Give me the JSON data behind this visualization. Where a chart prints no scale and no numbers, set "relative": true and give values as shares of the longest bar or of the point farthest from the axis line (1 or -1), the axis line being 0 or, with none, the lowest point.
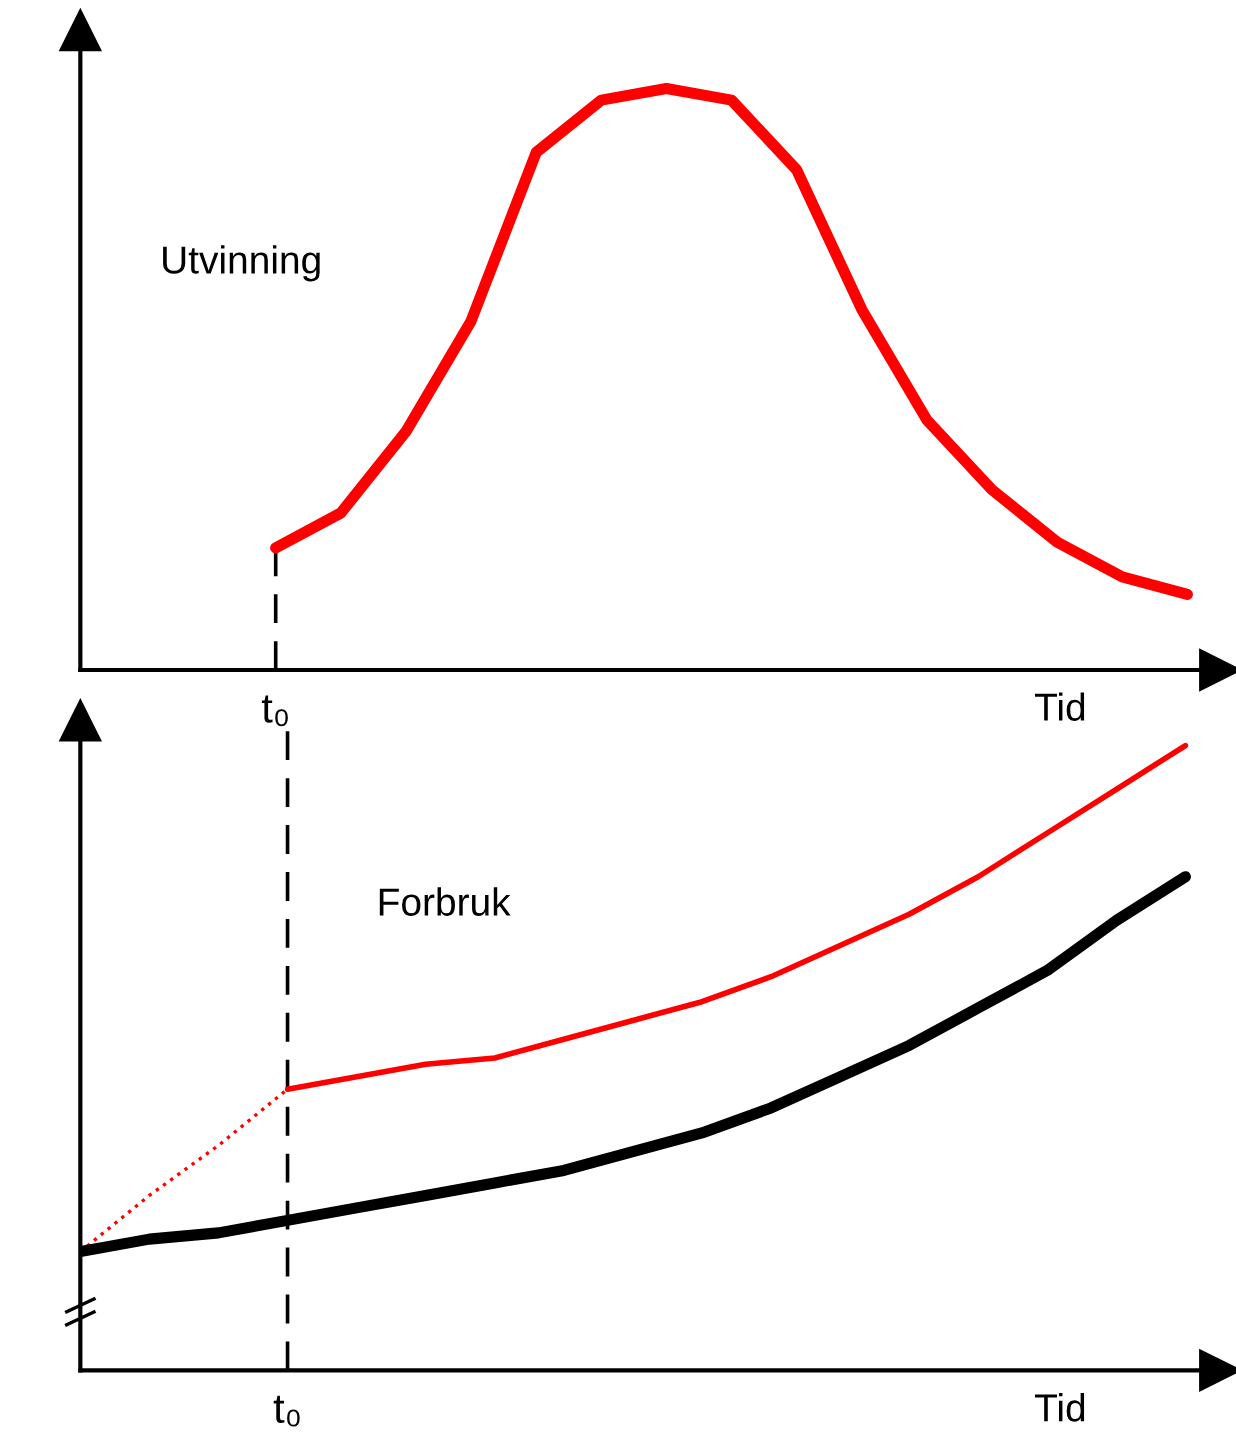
{
  "chart_data": [
    {
      "type": "line",
      "relative": true,
      "xlabel": "Tid",
      "annotations": [
        "Utvinning"
      ],
      "categories": [
        null,
        null,
        null,
        null,
        null,
        null,
        null,
        null,
        null,
        null,
        null,
        null,
        null,
        null,
        null,
        null,
        null,
        null
      ],
      "ref_lines": [
        {
          "axis": "x",
          "label": "t₀",
          "color": "#000000",
          "line_style": "dashed"
        }
      ],
      "series": [
        {
          "color": "#ff0000",
          "line_style": "solid",
          "values": [
            null,
            null,
            null,
            0.21,
            0.27,
            0.41,
            0.6,
            0.89,
            0.98,
            1,
            0.98,
            0.86,
            0.62,
            0.43,
            0.31,
            0.22,
            0.16,
            0.13
          ]
        }
      ]
    },
    {
      "type": "line",
      "relative": true,
      "xlabel": "Tid",
      "annotations": [
        "Forbruk"
      ],
      "categories": [
        null,
        null,
        null,
        null,
        null,
        null,
        null,
        null,
        null,
        null,
        null,
        null,
        null,
        null,
        null,
        null,
        null
      ],
      "ref_lines": [
        {
          "axis": "x",
          "label": "t₀",
          "color": "#000000",
          "line_style": "dashed"
        }
      ],
      "series": [
        {
          "color": "#ff0000",
          "line_style": "solid",
          "values": [
            null,
            null,
            null,
            0.45,
            0.47,
            0.49,
            0.5,
            0.53,
            0.56,
            0.59,
            0.63,
            0.68,
            0.73,
            0.79,
            0.86,
            0.93,
            1.0
          ]
        },
        {
          "color": "#ff0000",
          "line_style": "dotted",
          "values": [
            0.19,
            0.28,
            0.36,
            0.45,
            null,
            null,
            null,
            null,
            null,
            null,
            null,
            null,
            null,
            null,
            null,
            null,
            null
          ]
        },
        {
          "color": "#000000",
          "line_style": "solid",
          "values": [
            0.19,
            0.21,
            0.22,
            0.24,
            0.26,
            0.28,
            0.3,
            0.32,
            0.35,
            0.38,
            0.42,
            0.47,
            0.52,
            0.58,
            0.64,
            0.72,
            0.79
          ]
        }
      ]
    }
  ]
}
